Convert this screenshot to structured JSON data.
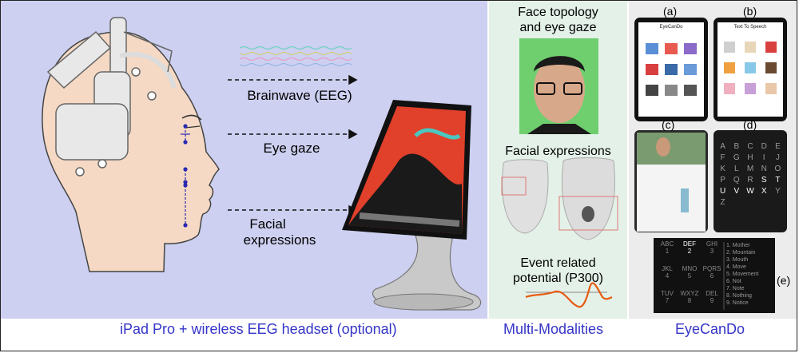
{
  "left": {
    "label_eeg": "Brainwave (EEG)",
    "label_gaze": "Eye gaze",
    "label_facial_1": "Facial",
    "label_facial_2": "expressions",
    "caption": "iPad Pro + wireless EEG headset (optional)"
  },
  "middle": {
    "title_face_1": "Face topology",
    "title_face_2": "and eye gaze",
    "title_expr": "Facial expressions",
    "title_erp_1": "Event related",
    "title_erp_2": "potential (P300)",
    "caption": "Multi-Modalities"
  },
  "right": {
    "tags": [
      "(a)",
      "(b)",
      "(c)",
      "(d)",
      "(e)"
    ],
    "app_title_a": "EyeCanDo",
    "app_title_b": "Text To Speech",
    "letter_grid": [
      "A",
      "B",
      "C",
      "D",
      "E",
      "F",
      "G",
      "H",
      "I",
      "J",
      "K",
      "L",
      "M",
      "N",
      "O",
      "P",
      "Q",
      "R",
      "S",
      "T",
      "U",
      "V",
      "W",
      "X",
      "Y",
      "Z"
    ],
    "t9_keys": [
      [
        "ABC",
        "1"
      ],
      [
        "DEF",
        "2"
      ],
      [
        "GHI",
        "3"
      ],
      [
        "JKL",
        "4"
      ],
      [
        "MNO",
        "5"
      ],
      [
        "PQRS",
        "6"
      ],
      [
        "TUV",
        "7"
      ],
      [
        "WXYZ",
        "8"
      ],
      [
        "DEL",
        "9"
      ]
    ],
    "word_list": [
      "1. Mother",
      "2. Mountain",
      "3. Mouth",
      "4. Move",
      "5. Movement",
      "6. Not",
      "7. Note",
      "8. Nothing",
      "9. Notice"
    ],
    "caption": "EyeCanDo"
  },
  "colors": {
    "left_bg": "#cdd0f0",
    "mid_bg": "#e4f1e8",
    "right_bg": "#ececec",
    "caption": "#3535c8",
    "arrow": "#2a2ab0",
    "erp": "#e85a10"
  }
}
